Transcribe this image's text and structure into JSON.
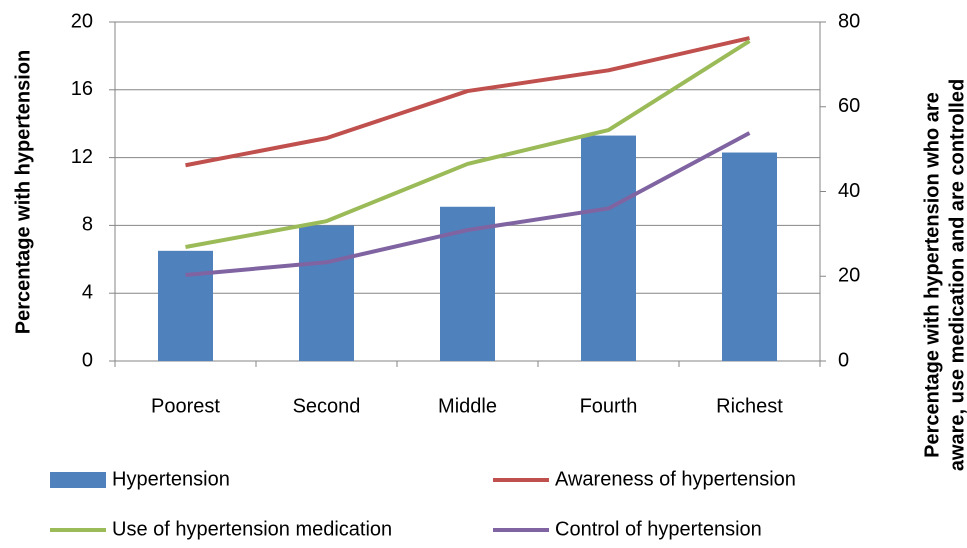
{
  "chart_data": {
    "type": "bar",
    "categories": [
      "Poorest",
      "Second",
      "Middle",
      "Fourth",
      "Richest"
    ],
    "ylabel": "Percentage with hypertension",
    "y2label": [
      "Percentage with hypertension who are",
      "aware, use medication  and are controlled"
    ],
    "ylim": [
      0,
      20
    ],
    "yticks": [
      0,
      4,
      8,
      12,
      16,
      20
    ],
    "y2lim": [
      0,
      80
    ],
    "y2ticks": [
      0,
      20,
      40,
      60,
      80
    ],
    "grid": true,
    "series": [
      {
        "name": "Hypertension",
        "type": "bar",
        "color": "#4f81bd",
        "values": [
          6.5,
          8.0,
          9.1,
          13.3,
          12.3
        ]
      },
      {
        "name": "Awareness of hypertension",
        "type": "line",
        "axis": "y2",
        "color": "#c0504d",
        "values": [
          46.2,
          52.6,
          63.7,
          68.6,
          76.2
        ]
      },
      {
        "name": "Use of hypertension medication",
        "type": "line",
        "axis": "y2",
        "color": "#9bbb59",
        "values": [
          26.9,
          33.0,
          46.5,
          54.5,
          75.5
        ]
      },
      {
        "name": "Control of hypertension",
        "type": "line",
        "axis": "y2",
        "color": "#8064a2",
        "values": [
          20.3,
          23.3,
          30.9,
          36.0,
          53.8
        ]
      }
    ]
  }
}
